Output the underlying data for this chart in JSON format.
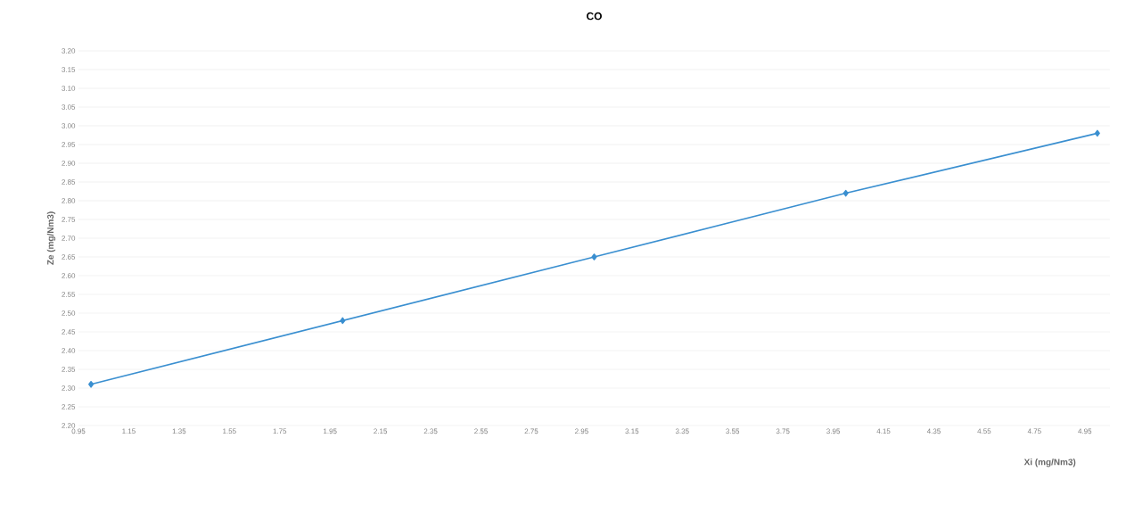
{
  "chart_data": {
    "type": "line",
    "title": "CO",
    "xlabel": "Xi (mg/Nm3)",
    "ylabel": "Ze (mg/Nm3)",
    "x": [
      1.0,
      2.0,
      3.0,
      4.0,
      5.0
    ],
    "series": [
      {
        "color": "#3a8fd0",
        "values": [
          2.31,
          2.48,
          2.65,
          2.82,
          2.98
        ]
      }
    ],
    "marker": "diamond",
    "grid": "y",
    "xlim": [
      0.95,
      5.05
    ],
    "xticks": [
      0.95,
      1.15,
      1.35,
      1.55,
      1.75,
      1.95,
      2.15,
      2.35,
      2.55,
      2.75,
      2.95,
      3.15,
      3.35,
      3.55,
      3.75,
      3.95,
      4.15,
      4.35,
      4.55,
      4.75,
      4.95
    ],
    "ylim": [
      2.2,
      3.2
    ],
    "yticks": [
      {
        "value": 2.2,
        "label": "2.20"
      },
      {
        "value": 2.25,
        "label": "2.25"
      },
      {
        "value": 2.3,
        "label": "2.30"
      },
      {
        "value": 2.35,
        "label": "2.35"
      },
      {
        "value": 2.4,
        "label": "2.40"
      },
      {
        "value": 2.45,
        "label": "2.45"
      },
      {
        "value": 2.5,
        "label": "2.50"
      },
      {
        "value": 2.55,
        "label": "2.55"
      },
      {
        "value": 2.6,
        "label": "2.60"
      },
      {
        "value": 2.65,
        "label": "2.65"
      },
      {
        "value": 2.7,
        "label": "2.70"
      },
      {
        "value": 2.75,
        "label": "2.75"
      },
      {
        "value": 2.8,
        "label": "2.80"
      },
      {
        "value": 2.85,
        "label": "2.85"
      },
      {
        "value": 2.9,
        "label": "2.90"
      },
      {
        "value": 2.95,
        "label": "2.95"
      },
      {
        "value": 3.0,
        "label": "3.00"
      },
      {
        "value": 3.05,
        "label": "3.05"
      },
      {
        "value": 3.1,
        "label": "3.10"
      },
      {
        "value": 3.15,
        "label": "3.15"
      },
      {
        "value": 3.2,
        "label": "3.20"
      }
    ]
  }
}
